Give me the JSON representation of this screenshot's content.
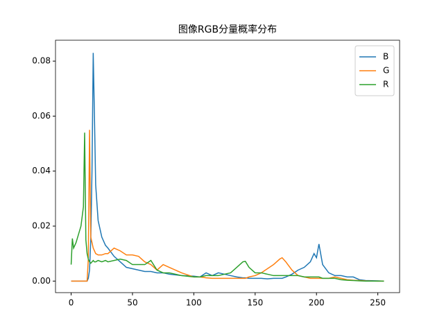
{
  "chart_data": {
    "type": "line",
    "title": "图像RGB分量概率分布",
    "x": [
      0,
      1,
      2,
      4,
      6,
      8,
      10,
      11,
      12,
      13,
      14,
      15,
      16,
      17,
      18,
      19,
      20,
      22,
      25,
      28,
      30,
      35,
      40,
      45,
      50,
      55,
      60,
      65,
      70,
      75,
      80,
      90,
      100,
      105,
      110,
      115,
      120,
      125,
      130,
      135,
      140,
      142,
      145,
      150,
      155,
      160,
      165,
      170,
      172,
      175,
      180,
      185,
      190,
      195,
      198,
      200,
      202,
      205,
      210,
      215,
      220,
      225,
      230,
      235,
      240,
      250,
      255
    ],
    "series": [
      {
        "name": "B",
        "color": "#1f77b4",
        "values": [
          0,
          0,
          0,
          0,
          0,
          0,
          0,
          0,
          0,
          0,
          0.001,
          0.004,
          0.015,
          0.04,
          0.083,
          0.06,
          0.035,
          0.022,
          0.016,
          0.013,
          0.012,
          0.009,
          0.007,
          0.005,
          0.0045,
          0.004,
          0.0035,
          0.0035,
          0.003,
          0.003,
          0.0025,
          0.002,
          0.0018,
          0.0015,
          0.003,
          0.002,
          0.003,
          0.0025,
          0.002,
          0.0015,
          0.0012,
          0.0012,
          0.001,
          0.001,
          0.001,
          0.0008,
          0.001,
          0.001,
          0.001,
          0.0015,
          0.0025,
          0.004,
          0.005,
          0.007,
          0.01,
          0.0085,
          0.0135,
          0.006,
          0.003,
          0.002,
          0.002,
          0.0015,
          0.0015,
          0.0005,
          0.0002,
          0.0001,
          0
        ]
      },
      {
        "name": "G",
        "color": "#ff7f0e",
        "values": [
          0,
          0,
          0,
          0,
          0,
          0,
          0,
          0,
          0,
          0,
          0.008,
          0.055,
          0.016,
          0.014,
          0.012,
          0.011,
          0.01,
          0.0095,
          0.0095,
          0.01,
          0.01,
          0.012,
          0.011,
          0.0095,
          0.0095,
          0.009,
          0.007,
          0.006,
          0.004,
          0.006,
          0.005,
          0.003,
          0.0015,
          0.0015,
          0.0012,
          0.001,
          0.001,
          0.001,
          0.001,
          0.001,
          0.001,
          0.001,
          0.0015,
          0.002,
          0.003,
          0.0045,
          0.006,
          0.008,
          0.0085,
          0.007,
          0.004,
          0.002,
          0.0015,
          0.001,
          0.001,
          0.001,
          0.001,
          0.001,
          0.001,
          0.0015,
          0.001,
          0.0005,
          0.0003,
          0.0002,
          0.0001,
          0,
          0
        ]
      },
      {
        "name": "R",
        "color": "#2ca02c",
        "values": [
          0.006,
          0.0155,
          0.012,
          0.014,
          0.017,
          0.02,
          0.027,
          0.054,
          0.015,
          0.01,
          0.008,
          0.007,
          0.0065,
          0.007,
          0.0075,
          0.007,
          0.007,
          0.0075,
          0.007,
          0.0075,
          0.007,
          0.0075,
          0.008,
          0.0075,
          0.006,
          0.006,
          0.006,
          0.0075,
          0.004,
          0.003,
          0.003,
          0.002,
          0.0015,
          0.0015,
          0.002,
          0.002,
          0.002,
          0.0025,
          0.003,
          0.005,
          0.007,
          0.0072,
          0.005,
          0.003,
          0.003,
          0.0025,
          0.002,
          0.002,
          0.002,
          0.002,
          0.002,
          0.002,
          0.0015,
          0.0015,
          0.0015,
          0.0015,
          0.0015,
          0.001,
          0.001,
          0.001,
          0.0005,
          0.0003,
          0.0002,
          0.0001,
          0,
          0,
          0
        ]
      }
    ],
    "xlim": [
      -12.75,
      267.75
    ],
    "ylim": [
      -0.0042,
      0.0876
    ],
    "xticks": [
      0,
      50,
      100,
      150,
      200,
      250
    ],
    "yticks": [
      {
        "value": 0,
        "label": "0.00"
      },
      {
        "value": 0.02,
        "label": "0.02"
      },
      {
        "value": 0.04,
        "label": "0.04"
      },
      {
        "value": 0.06,
        "label": "0.06"
      },
      {
        "value": 0.08,
        "label": "0.08"
      }
    ],
    "legend": "upper right"
  }
}
